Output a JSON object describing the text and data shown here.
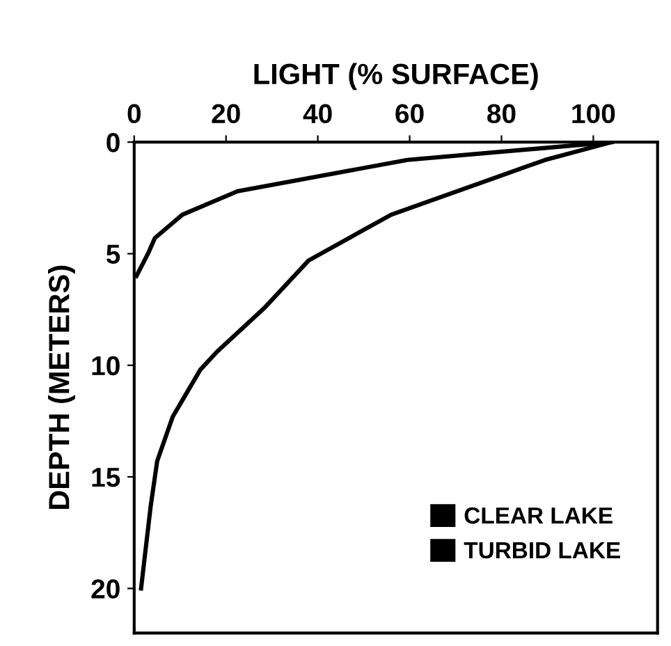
{
  "chart_data": {
    "type": "line",
    "xlabel": "LIGHT (% SURFACE)",
    "ylabel": "DEPTH (METERS)",
    "xlim": [
      0,
      114
    ],
    "xticks": [
      0,
      20,
      40,
      60,
      80,
      100
    ],
    "ylim": [
      22,
      0
    ],
    "yticks": [
      0,
      5,
      10,
      15,
      20
    ],
    "grid": false,
    "legend": "bottom right",
    "marker": "none",
    "line_style": "solid",
    "series": [
      {
        "name": "CLEAR LAKE",
        "color": "#000000",
        "x": [
          104,
          89.5,
          56,
          38,
          28.5,
          18,
          14.4,
          8.4,
          5,
          3.6,
          2.4,
          1.5
        ],
        "values": [
          0,
          0.8,
          3.25,
          5.3,
          7.4,
          9.4,
          10.2,
          12.3,
          14.3,
          16.3,
          18.4,
          20
        ]
      },
      {
        "name": "TURBID LAKE",
        "color": "#000000",
        "x": [
          104,
          59.5,
          22.5,
          10.5,
          4.5,
          3,
          0.5
        ],
        "values": [
          0,
          0.8,
          2.2,
          3.25,
          4.3,
          5,
          6
        ]
      }
    ]
  }
}
